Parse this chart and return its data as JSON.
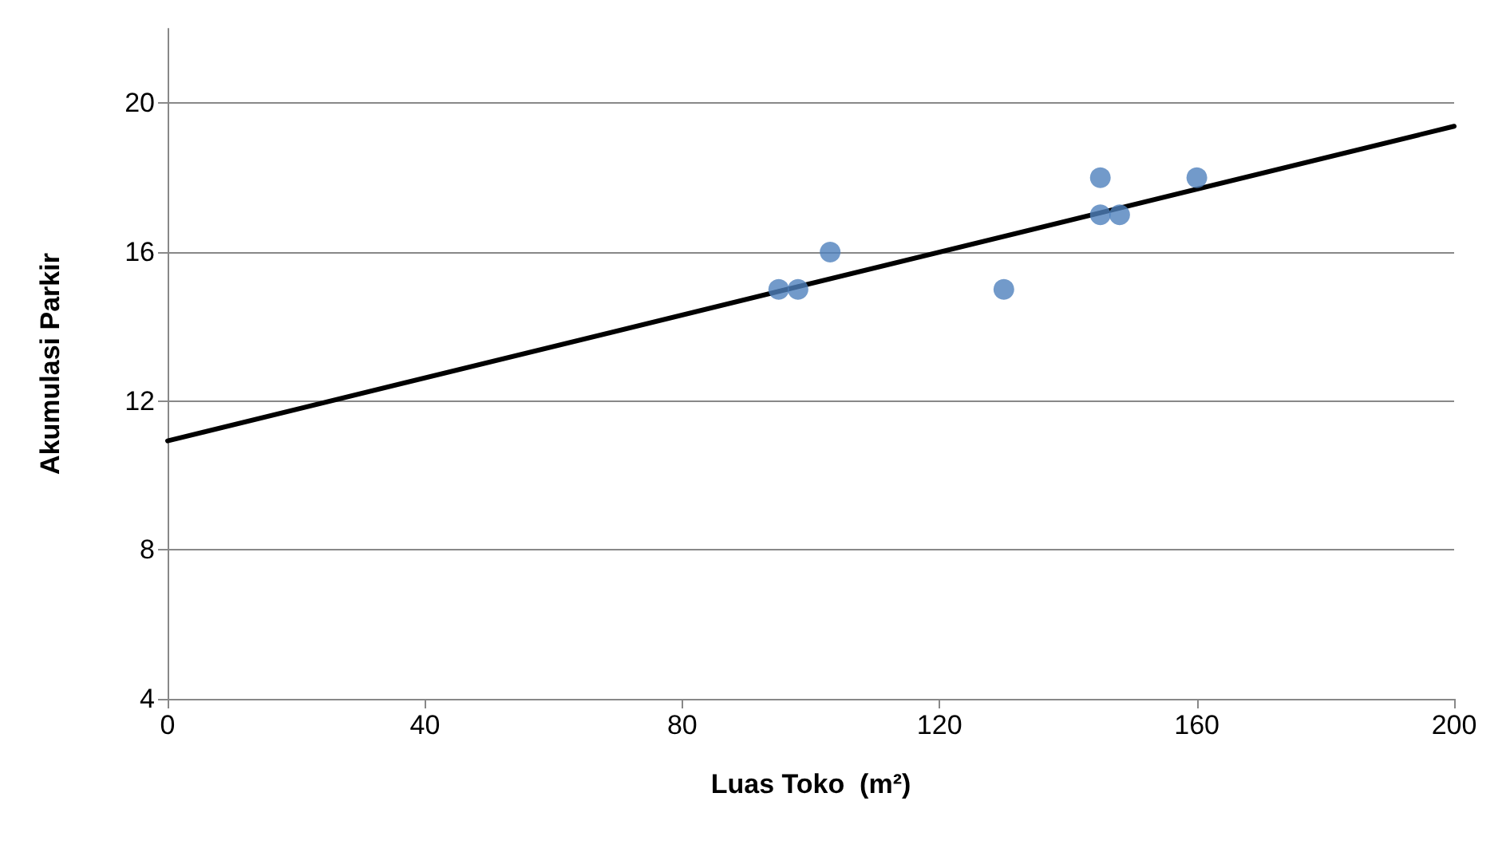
{
  "chart_data": {
    "type": "scatter",
    "xlabel": "Luas Toko  (m²)",
    "ylabel": "Akumulasi Parkir",
    "xlim": [
      0,
      200
    ],
    "xticks": [
      0,
      40,
      80,
      120,
      160,
      200
    ],
    "ylim": [
      4,
      22
    ],
    "yticks": [
      4,
      8,
      12,
      16,
      20
    ],
    "grid": "y",
    "marker": "circle",
    "series": [
      {
        "color": "#4f81bd",
        "x": [
          95,
          98,
          103,
          130,
          145,
          145,
          148,
          160
        ],
        "values": [
          15,
          15,
          16,
          15,
          17,
          18,
          17,
          18
        ]
      },
      {
        "type": "line",
        "color": "#000000",
        "marker": "none",
        "line_style": "solid",
        "x": [
          0,
          200
        ],
        "values": [
          10.93,
          19.38
        ]
      }
    ]
  }
}
